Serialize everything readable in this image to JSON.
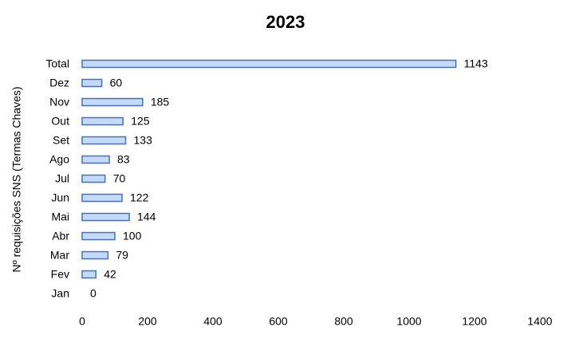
{
  "chart_data": {
    "type": "bar",
    "orientation": "horizontal",
    "title": "2023",
    "y_label": "Nº requisições SNS (Termas Chaves)",
    "categories": [
      "Jan",
      "Fev",
      "Mar",
      "Abr",
      "Mai",
      "Jun",
      "Jul",
      "Ago",
      "Set",
      "Out",
      "Nov",
      "Dez",
      "Total"
    ],
    "values": [
      0,
      42,
      79,
      100,
      144,
      122,
      70,
      83,
      133,
      125,
      185,
      60,
      1143
    ],
    "color": "#c6d9f7",
    "edge_color": "#4472c4",
    "xlim": [
      0,
      1400
    ],
    "xticks": [
      0,
      200,
      400,
      600,
      800,
      1000,
      1200,
      1400
    ],
    "grid": false
  }
}
